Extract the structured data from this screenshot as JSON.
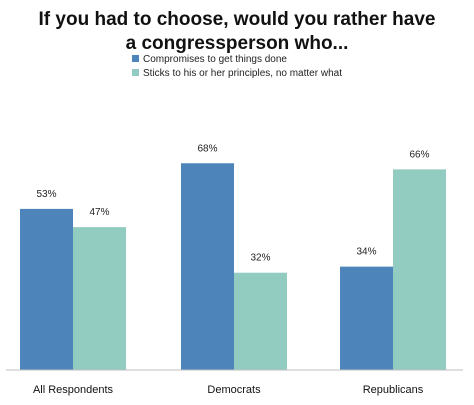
{
  "chart_data": {
    "type": "bar",
    "title_lines": [
      "If you had to choose, would you rather have",
      "a congressperson who..."
    ],
    "categories": [
      "All Respondents",
      "Democrats",
      "Republicans"
    ],
    "series": [
      {
        "name": "Compromises to get things done",
        "values": [
          53,
          68,
          34
        ],
        "color": "#4d84b9"
      },
      {
        "name": "Sticks to his or her principles, no matter what",
        "values": [
          47,
          32,
          66
        ],
        "color": "#92ccc1"
      }
    ],
    "value_suffix": "%",
    "ylim": [
      0,
      100
    ],
    "grid": false,
    "legend_position": "top"
  }
}
